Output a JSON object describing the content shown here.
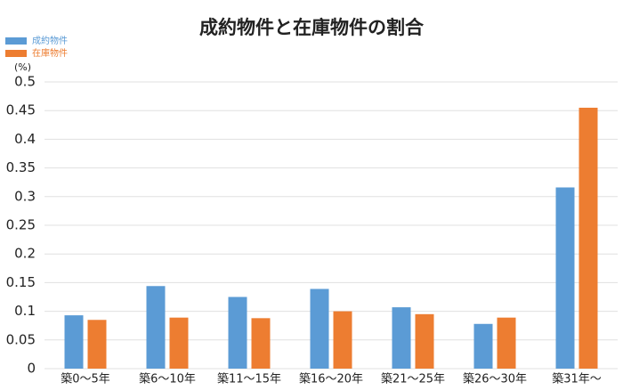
{
  "chart_data": {
    "type": "bar",
    "title": "成約物件と在庫物件の割合",
    "ylabel": "(%)",
    "categories": [
      "築0～5年",
      "築6～10年",
      "築11～15年",
      "築16～20年",
      "築21～25年",
      "築26～30年",
      "築31年～"
    ],
    "series": [
      {
        "name": "成約物件",
        "color": "#5b9bd5",
        "values": [
          0.093,
          0.144,
          0.125,
          0.139,
          0.107,
          0.078,
          0.316
        ]
      },
      {
        "name": "在庫物件",
        "color": "#ed7d31",
        "values": [
          0.085,
          0.089,
          0.088,
          0.1,
          0.095,
          0.089,
          0.455
        ]
      }
    ],
    "ylim": [
      0,
      0.5
    ],
    "yticks": [
      0,
      0.05,
      0.1,
      0.15,
      0.2,
      0.25,
      0.3,
      0.35,
      0.4,
      0.45,
      0.5
    ],
    "grid": true,
    "legend": "top-left"
  }
}
